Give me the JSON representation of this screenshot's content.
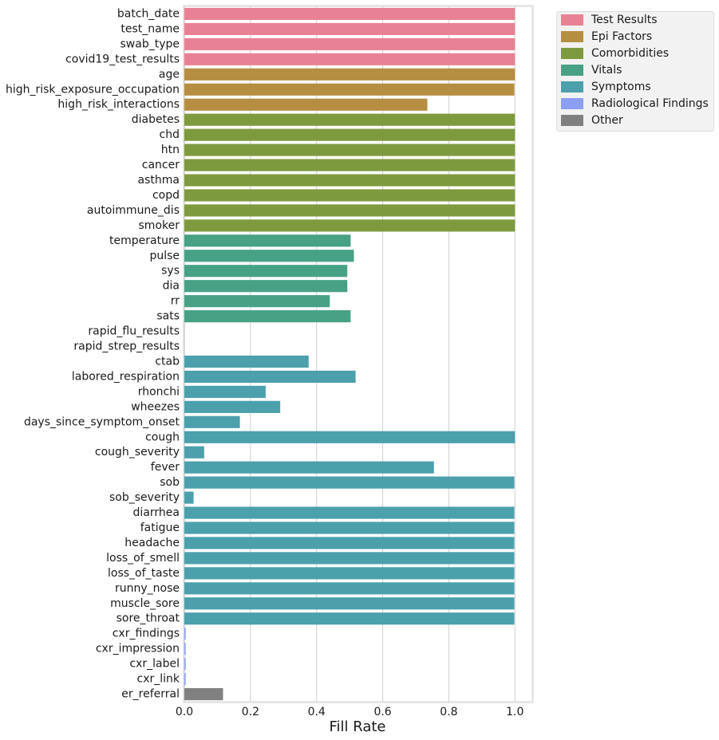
{
  "chart_data": {
    "type": "bar",
    "orientation": "horizontal",
    "title": "",
    "xlabel": "Fill Rate",
    "ylabel": "",
    "xlim": [
      0.0,
      1.05
    ],
    "xticks": [
      0.0,
      0.2,
      0.4,
      0.6,
      0.8,
      1.0
    ],
    "xtick_labels": [
      "0.0",
      "0.2",
      "0.4",
      "0.6",
      "0.8",
      "1.0"
    ],
    "grid": "x",
    "legend_position": "outside-top-right",
    "groups": [
      {
        "name": "Test Results",
        "color": "#e98194"
      },
      {
        "name": "Epi Factors",
        "color": "#b68e42"
      },
      {
        "name": "Comorbidities",
        "color": "#7e9a3f"
      },
      {
        "name": "Vitals",
        "color": "#47a185"
      },
      {
        "name": "Symptoms",
        "color": "#4ba0ac"
      },
      {
        "name": "Radiological Findings",
        "color": "#8b9ff5"
      },
      {
        "name": "Other",
        "color": "#808080"
      }
    ],
    "bars": [
      {
        "label": "batch_date",
        "value": 1.0,
        "group": "Test Results"
      },
      {
        "label": "test_name",
        "value": 1.0,
        "group": "Test Results"
      },
      {
        "label": "swab_type",
        "value": 1.0,
        "group": "Test Results"
      },
      {
        "label": "covid19_test_results",
        "value": 1.0,
        "group": "Test Results"
      },
      {
        "label": "age",
        "value": 1.0,
        "group": "Epi Factors"
      },
      {
        "label": "high_risk_exposure_occupation",
        "value": 0.998,
        "group": "Epi Factors"
      },
      {
        "label": "high_risk_interactions",
        "value": 0.735,
        "group": "Epi Factors"
      },
      {
        "label": "diabetes",
        "value": 1.0,
        "group": "Comorbidities"
      },
      {
        "label": "chd",
        "value": 1.0,
        "group": "Comorbidities"
      },
      {
        "label": "htn",
        "value": 1.0,
        "group": "Comorbidities"
      },
      {
        "label": "cancer",
        "value": 1.0,
        "group": "Comorbidities"
      },
      {
        "label": "asthma",
        "value": 1.0,
        "group": "Comorbidities"
      },
      {
        "label": "copd",
        "value": 1.0,
        "group": "Comorbidities"
      },
      {
        "label": "autoimmune_dis",
        "value": 1.0,
        "group": "Comorbidities"
      },
      {
        "label": "smoker",
        "value": 1.0,
        "group": "Comorbidities"
      },
      {
        "label": "temperature",
        "value": 0.503,
        "group": "Vitals"
      },
      {
        "label": "pulse",
        "value": 0.513,
        "group": "Vitals"
      },
      {
        "label": "sys",
        "value": 0.493,
        "group": "Vitals"
      },
      {
        "label": "dia",
        "value": 0.493,
        "group": "Vitals"
      },
      {
        "label": "rr",
        "value": 0.44,
        "group": "Vitals"
      },
      {
        "label": "sats",
        "value": 0.503,
        "group": "Vitals"
      },
      {
        "label": "rapid_flu_results",
        "value": 0.0,
        "group": "Symptoms"
      },
      {
        "label": "rapid_strep_results",
        "value": 0.0,
        "group": "Symptoms"
      },
      {
        "label": "ctab",
        "value": 0.376,
        "group": "Symptoms"
      },
      {
        "label": "labored_respiration",
        "value": 0.518,
        "group": "Symptoms"
      },
      {
        "label": "rhonchi",
        "value": 0.246,
        "group": "Symptoms"
      },
      {
        "label": "wheezes",
        "value": 0.29,
        "group": "Symptoms"
      },
      {
        "label": "days_since_symptom_onset",
        "value": 0.168,
        "group": "Symptoms"
      },
      {
        "label": "cough",
        "value": 1.0,
        "group": "Symptoms"
      },
      {
        "label": "cough_severity",
        "value": 0.06,
        "group": "Symptoms"
      },
      {
        "label": "fever",
        "value": 0.755,
        "group": "Symptoms"
      },
      {
        "label": "sob",
        "value": 0.998,
        "group": "Symptoms"
      },
      {
        "label": "sob_severity",
        "value": 0.028,
        "group": "Symptoms"
      },
      {
        "label": "diarrhea",
        "value": 0.998,
        "group": "Symptoms"
      },
      {
        "label": "fatigue",
        "value": 0.998,
        "group": "Symptoms"
      },
      {
        "label": "headache",
        "value": 0.998,
        "group": "Symptoms"
      },
      {
        "label": "loss_of_smell",
        "value": 0.998,
        "group": "Symptoms"
      },
      {
        "label": "loss_of_taste",
        "value": 0.998,
        "group": "Symptoms"
      },
      {
        "label": "runny_nose",
        "value": 0.998,
        "group": "Symptoms"
      },
      {
        "label": "muscle_sore",
        "value": 0.998,
        "group": "Symptoms"
      },
      {
        "label": "sore_throat",
        "value": 0.998,
        "group": "Symptoms"
      },
      {
        "label": "cxr_findings",
        "value": 0.004,
        "group": "Radiological Findings"
      },
      {
        "label": "cxr_impression",
        "value": 0.004,
        "group": "Radiological Findings"
      },
      {
        "label": "cxr_label",
        "value": 0.004,
        "group": "Radiological Findings"
      },
      {
        "label": "cxr_link",
        "value": 0.004,
        "group": "Radiological Findings"
      },
      {
        "label": "er_referral",
        "value": 0.117,
        "group": "Other"
      }
    ]
  }
}
